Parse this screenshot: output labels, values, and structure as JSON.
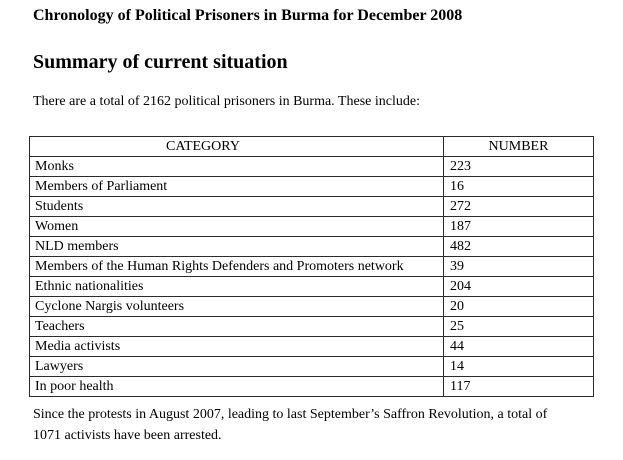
{
  "document": {
    "title": "Chronology of Political Prisoners in Burma for December 2008",
    "heading": "Summary of current situation",
    "intro": "There are a total of 2162 political prisoners in Burma. These include:",
    "footer_lines": [
      "Since the protests in August 2007, leading to last September’s Saffron Revolution, a total of",
      "1071 activists have been arrested."
    ]
  },
  "table": {
    "headers": [
      "CATEGORY",
      "NUMBER"
    ],
    "rows": [
      {
        "category": "Monks",
        "number": "223"
      },
      {
        "category": "Members of Parliament",
        "number": "16"
      },
      {
        "category": "Students",
        "number": "272"
      },
      {
        "category": "Women",
        "number": "187"
      },
      {
        "category": "NLD members",
        "number": "482"
      },
      {
        "category": "Members of the Human Rights Defenders and Promoters network",
        "number": "39"
      },
      {
        "category": "Ethnic nationalities",
        "number": "204"
      },
      {
        "category": "Cyclone Nargis volunteers",
        "number": "20"
      },
      {
        "category": "Teachers",
        "number": "25"
      },
      {
        "category": "Media activists",
        "number": "44"
      },
      {
        "category": "Lawyers",
        "number": "14"
      },
      {
        "category": "In poor health",
        "number": "117"
      }
    ]
  }
}
